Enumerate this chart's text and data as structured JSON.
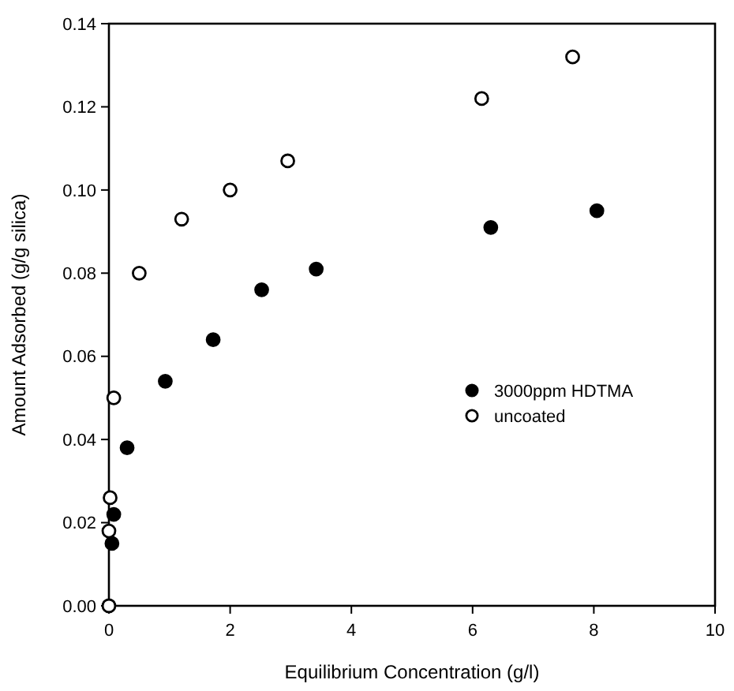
{
  "chart_data": {
    "type": "scatter",
    "xlabel": "Equilibrium Concentration (g/l)",
    "ylabel": "Amount Adsorbed (g/g silica)",
    "xlim": [
      0,
      10
    ],
    "xticks": [
      0,
      2,
      4,
      6,
      8,
      10
    ],
    "ylim": [
      0,
      0.14
    ],
    "yticks": [
      {
        "value": 0,
        "label": "0.00"
      },
      {
        "value": 0.02,
        "label": "0.02"
      },
      {
        "value": 0.04,
        "label": "0.04"
      },
      {
        "value": 0.06,
        "label": "0.06"
      },
      {
        "value": 0.08,
        "label": "0.08"
      },
      {
        "value": 0.1,
        "label": "0.10"
      },
      {
        "value": 0.12,
        "label": "0.12"
      },
      {
        "value": 0.14,
        "label": "0.14"
      }
    ],
    "grid": false,
    "legend": "right",
    "marker": "circle",
    "series": [
      {
        "name": "3000ppm HDTMA",
        "color": "#000000",
        "x": [
          0.05,
          0.08,
          0.3,
          0.93,
          1.72,
          2.52,
          3.42,
          6.3,
          8.05
        ],
        "values": [
          0.015,
          0.022,
          0.038,
          0.054,
          0.064,
          0.076,
          0.081,
          0.091,
          0.095
        ]
      },
      {
        "name": "uncoated",
        "color": "#ffffff",
        "x": [
          0,
          0,
          0.02,
          0.08,
          0.5,
          1.2,
          2.0,
          2.95,
          6.15,
          7.65
        ],
        "values": [
          0,
          0.018,
          0.026,
          0.05,
          0.08,
          0.093,
          0.1,
          0.107,
          0.122,
          0.132
        ]
      }
    ]
  }
}
